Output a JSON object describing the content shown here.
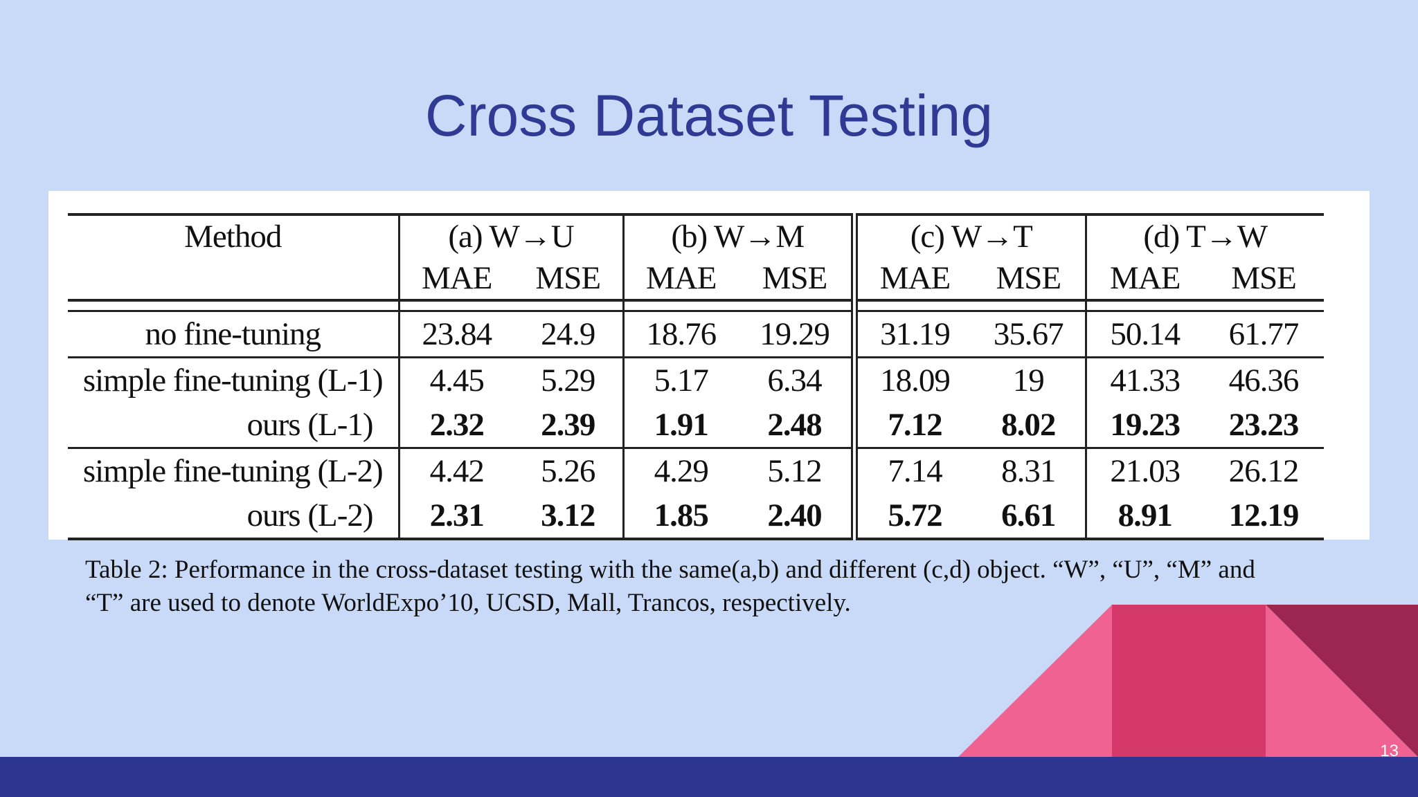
{
  "slide": {
    "title": "Cross Dataset Testing",
    "page_number": "13",
    "colors": {
      "background": "#c9daf8",
      "title": "#2e3a93",
      "bottom_bar": "#2c3690",
      "pink_light": "#f06292",
      "pink_mid": "#d5386b",
      "maroon": "#9c2650"
    }
  },
  "table": {
    "method_header": "Method",
    "groups": [
      "(a) W→U",
      "(b) W→M",
      "(c) W→T",
      "(d) T→W"
    ],
    "metrics": [
      "MAE",
      "MSE",
      "MAE",
      "MSE",
      "MAE",
      "MSE",
      "MAE",
      "MSE"
    ],
    "rows": [
      {
        "method": "no fine-tuning",
        "values": [
          "23.84",
          "24.9",
          "18.76",
          "19.29",
          "31.19",
          "35.67",
          "50.14",
          "61.77"
        ]
      },
      {
        "method": "simple fine-tuning (L-1)",
        "values": [
          "4.45",
          "5.29",
          "5.17",
          "6.34",
          "18.09",
          "19",
          "41.33",
          "46.36"
        ]
      },
      {
        "method": "ours (L-1)",
        "values": [
          "2.32",
          "2.39",
          "1.91",
          "2.48",
          "7.12",
          "8.02",
          "19.23",
          "23.23"
        ]
      },
      {
        "method": "simple fine-tuning (L-2)",
        "values": [
          "4.42",
          "5.26",
          "4.29",
          "5.12",
          "7.14",
          "8.31",
          "21.03",
          "26.12"
        ]
      },
      {
        "method": "ours (L-2)",
        "values": [
          "2.31",
          "3.12",
          "1.85",
          "2.40",
          "5.72",
          "6.61",
          "8.91",
          "12.19"
        ]
      }
    ]
  },
  "caption": {
    "line1": "Table 2: Performance in the cross-dataset testing with the same(a,b) and different (c,d) object. “W”, “U”, “M” and",
    "line2": "“T” are used to denote WorldExpo’10, UCSD, Mall, Trancos, respectively."
  }
}
